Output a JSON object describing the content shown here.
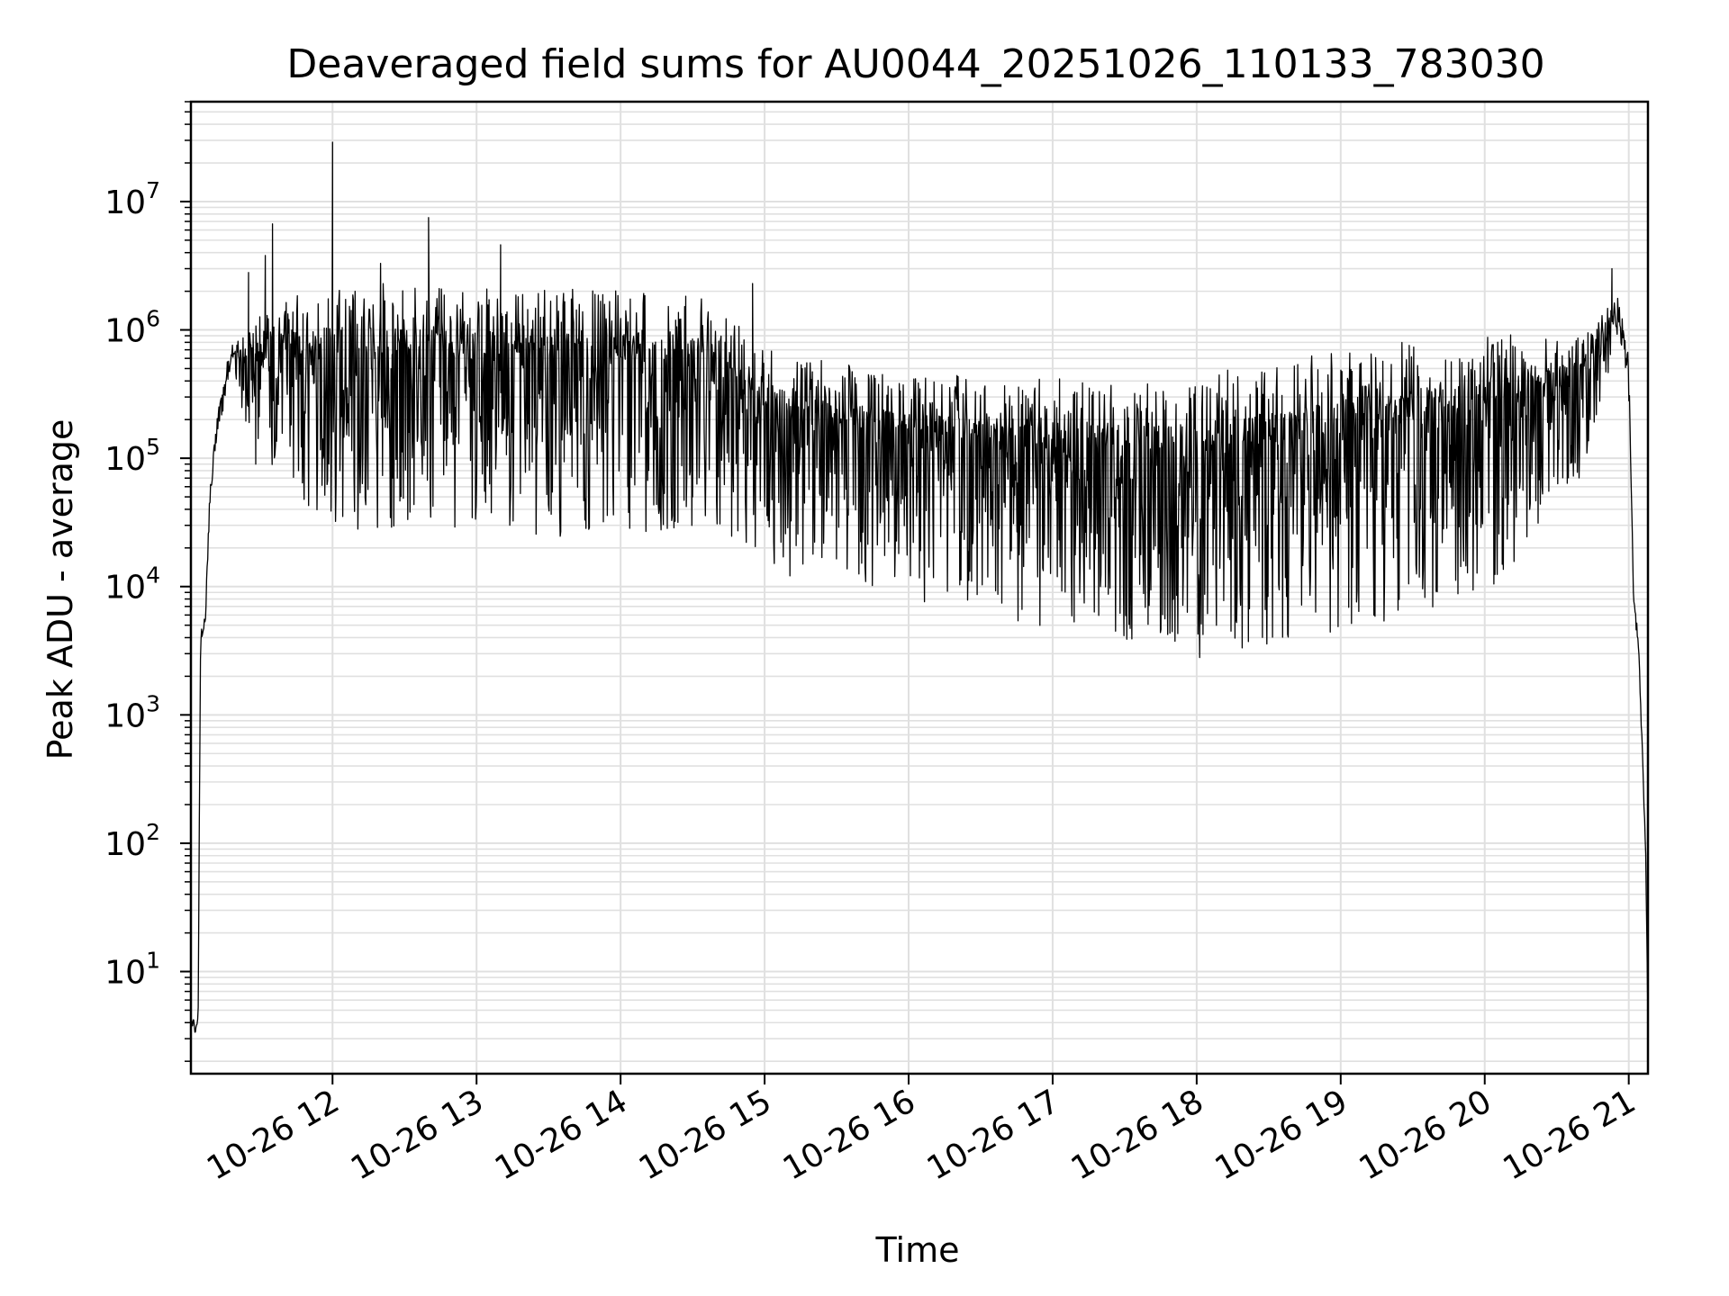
{
  "chart_data": {
    "type": "line",
    "title": "Deaveraged field sums for AU0044_20251026_110133_783030",
    "xlabel": "Time",
    "ylabel": "Peak ADU - average",
    "yscale": "log",
    "grid": true,
    "legend": "none",
    "x_ticks": [
      "10-26 12",
      "10-26 13",
      "10-26 14",
      "10-26 15",
      "10-26 16",
      "10-26 17",
      "10-26 18",
      "10-26 19",
      "10-26 20",
      "10-26 21"
    ],
    "y_ticks": [
      {
        "base": "10",
        "exp": "1"
      },
      {
        "base": "10",
        "exp": "2"
      },
      {
        "base": "10",
        "exp": "3"
      },
      {
        "base": "10",
        "exp": "4"
      },
      {
        "base": "10",
        "exp": "5"
      },
      {
        "base": "10",
        "exp": "6"
      },
      {
        "base": "10",
        "exp": "7"
      }
    ],
    "xlim": [
      "2025-10-26 11:01",
      "2025-10-26 21:08"
    ],
    "ylim": [
      1.6,
      60000000
    ],
    "line_color": "#000000",
    "grid_color": "#e0e0e0",
    "series": [
      {
        "envelope": [
          {
            "t": "2025-10-26 11:01",
            "base": 4,
            "spread": 0.1
          },
          {
            "t": "2025-10-26 11:04",
            "base": 4,
            "spread": 0.1
          },
          {
            "t": "2025-10-26 11:05",
            "base": 4000,
            "spread": 0.1
          },
          {
            "t": "2025-10-26 11:07",
            "base": 6000,
            "spread": 0.1
          },
          {
            "t": "2025-10-26 11:09",
            "base": 60000,
            "spread": 0.15
          },
          {
            "t": "2025-10-26 11:12",
            "base": 200000,
            "spread": 0.15
          },
          {
            "t": "2025-10-26 11:17",
            "base": 600000,
            "spread": 0.3
          },
          {
            "t": "2025-10-26 11:30",
            "base": 700000,
            "spread": 1.0
          },
          {
            "t": "2025-10-26 12:00",
            "base": 700000,
            "spread": 1.8
          },
          {
            "t": "2025-10-26 13:00",
            "base": 650000,
            "spread": 1.7
          },
          {
            "t": "2025-10-26 14:00",
            "base": 600000,
            "spread": 1.8
          },
          {
            "t": "2025-10-26 14:35",
            "base": 550000,
            "spread": 1.7
          },
          {
            "t": "2025-10-26 15:00",
            "base": 250000,
            "spread": 1.6
          },
          {
            "t": "2025-10-26 16:00",
            "base": 150000,
            "spread": 1.6
          },
          {
            "t": "2025-10-26 17:00",
            "base": 130000,
            "spread": 1.8
          },
          {
            "t": "2025-10-26 18:00",
            "base": 110000,
            "spread": 2.0
          },
          {
            "t": "2025-10-26 19:00",
            "base": 180000,
            "spread": 2.0
          },
          {
            "t": "2025-10-26 20:00",
            "base": 250000,
            "spread": 1.9
          },
          {
            "t": "2025-10-26 20:40",
            "base": 450000,
            "spread": 1.0
          },
          {
            "t": "2025-10-26 20:56",
            "base": 1500000,
            "spread": 0.3
          },
          {
            "t": "2025-10-26 21:00",
            "base": 500000,
            "spread": 0.3
          },
          {
            "t": "2025-10-26 21:02",
            "base": 8000,
            "spread": 0.1
          },
          {
            "t": "2025-10-26 21:04",
            "base": 4000,
            "spread": 0.1
          },
          {
            "t": "2025-10-26 21:07",
            "base": 100,
            "spread": 0.1
          },
          {
            "t": "2025-10-26 21:08",
            "base": 4,
            "spread": 0.05
          }
        ],
        "spikes": [
          {
            "t": "2025-10-26 11:25",
            "value": 2800000
          },
          {
            "t": "2025-10-26 11:32",
            "value": 3800000
          },
          {
            "t": "2025-10-26 11:35",
            "value": 6700000
          },
          {
            "t": "2025-10-26 12:00",
            "value": 29000000
          },
          {
            "t": "2025-10-26 12:20",
            "value": 3300000
          },
          {
            "t": "2025-10-26 12:40",
            "value": 7500000
          },
          {
            "t": "2025-10-26 13:10",
            "value": 4600000
          },
          {
            "t": "2025-10-26 14:55",
            "value": 2300000
          },
          {
            "t": "2025-10-26 20:53",
            "value": 3000000
          }
        ],
        "dips": [
          {
            "t": "2025-10-26 11:28",
            "value": 90000
          },
          {
            "t": "2025-10-26 12:25",
            "value": 70000
          },
          {
            "t": "2025-10-26 12:27",
            "value": 70000
          },
          {
            "t": "2025-10-26 14:03",
            "value": 60000
          },
          {
            "t": "2025-10-26 14:30",
            "value": 50000
          },
          {
            "t": "2025-10-26 14:52",
            "value": 48000
          },
          {
            "t": "2025-10-26 15:50",
            "value": 45000
          },
          {
            "t": "2025-10-26 16:28",
            "value": 48000
          },
          {
            "t": "2025-10-26 16:45",
            "value": 40000
          },
          {
            "t": "2025-10-26 17:50",
            "value": 45000
          },
          {
            "t": "2025-10-26 18:05",
            "value": 48000
          }
        ]
      }
    ]
  }
}
